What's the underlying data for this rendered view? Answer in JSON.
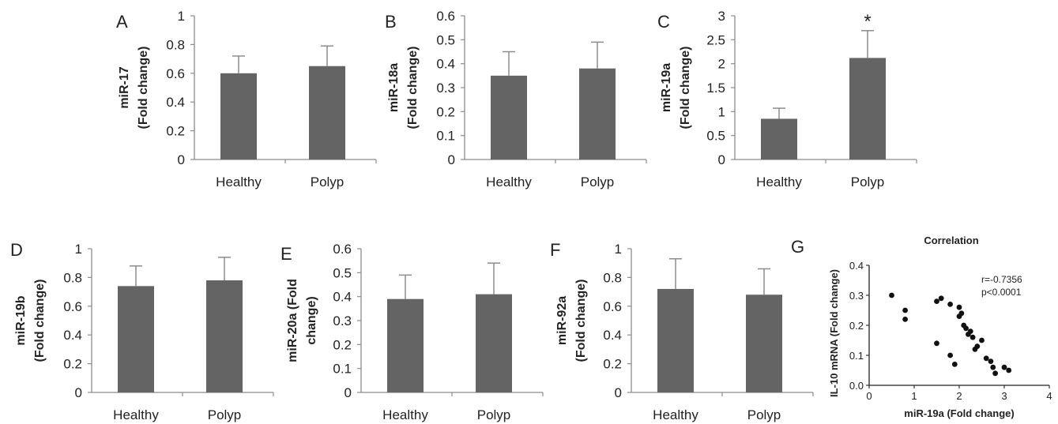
{
  "chart_data": [
    {
      "panel": "A",
      "type": "bar",
      "ylabel": [
        "miR-17",
        "(Fold change)"
      ],
      "categories": [
        "Healthy",
        "Polyp"
      ],
      "values": [
        0.6,
        0.65
      ],
      "errors": [
        0.12,
        0.14
      ],
      "ylim": [
        0,
        1
      ],
      "yticks": [
        "0",
        "0.2",
        "0.4",
        "0.6",
        "0.8",
        "1"
      ],
      "significance": [
        "",
        ""
      ]
    },
    {
      "panel": "B",
      "type": "bar",
      "ylabel": [
        "miR-18a",
        "(Fold change)"
      ],
      "categories": [
        "Healthy",
        "Polyp"
      ],
      "values": [
        0.35,
        0.38
      ],
      "errors": [
        0.1,
        0.11
      ],
      "ylim": [
        0,
        0.6
      ],
      "yticks": [
        "0",
        "0.1",
        "0.2",
        "0.3",
        "0.4",
        "0.5",
        "0.6"
      ],
      "significance": [
        "",
        ""
      ]
    },
    {
      "panel": "C",
      "type": "bar",
      "ylabel": [
        "miR-19a",
        "(Fold change)"
      ],
      "categories": [
        "Healthy",
        "Polyp"
      ],
      "values": [
        0.85,
        2.12
      ],
      "errors": [
        0.22,
        0.57
      ],
      "ylim": [
        0,
        3
      ],
      "yticks": [
        "0",
        "0.5",
        "1",
        "1.5",
        "2",
        "2.5",
        "3"
      ],
      "significance": [
        "",
        "*"
      ]
    },
    {
      "panel": "D",
      "type": "bar",
      "ylabel": [
        "miR-19b",
        "(Fold change)"
      ],
      "categories": [
        "Healthy",
        "Polyp"
      ],
      "values": [
        0.74,
        0.78
      ],
      "errors": [
        0.14,
        0.16
      ],
      "ylim": [
        0,
        1
      ],
      "yticks": [
        "0",
        "0.2",
        "0.4",
        "0.6",
        "0.8",
        "1"
      ],
      "significance": [
        "",
        ""
      ]
    },
    {
      "panel": "E",
      "type": "bar",
      "ylabel": [
        "miR-20a (Fold",
        "change)"
      ],
      "categories": [
        "Healthy",
        "Polyp"
      ],
      "values": [
        0.39,
        0.41
      ],
      "errors": [
        0.1,
        0.13
      ],
      "ylim": [
        0,
        0.6
      ],
      "yticks": [
        "0",
        "0.1",
        "0.2",
        "0.3",
        "0.4",
        "0.5",
        "0.6"
      ],
      "significance": [
        "",
        ""
      ]
    },
    {
      "panel": "F",
      "type": "bar",
      "ylabel": [
        "miR-92a",
        "(Fold change)"
      ],
      "categories": [
        "Healthy",
        "Polyp"
      ],
      "values": [
        0.72,
        0.68
      ],
      "errors": [
        0.21,
        0.18
      ],
      "ylim": [
        0,
        1
      ],
      "yticks": [
        "0",
        "0.2",
        "0.4",
        "0.6",
        "0.8",
        "1"
      ],
      "significance": [
        "",
        ""
      ]
    },
    {
      "panel": "G",
      "type": "scatter",
      "title": "Correlation",
      "xlabel": "miR-19a (Fold change)",
      "ylabel": "IL-10 mRNA (Fold change)",
      "xlim": [
        0,
        4
      ],
      "ylim": [
        0,
        0.4
      ],
      "xticks": [
        "0",
        "1",
        "2",
        "3",
        "4"
      ],
      "yticks": [
        "0.0",
        "0.1",
        "0.2",
        "0.3",
        "0.4"
      ],
      "annotation": [
        "r=-0.7356",
        "p<0.0001"
      ],
      "points": [
        [
          0.5,
          0.3
        ],
        [
          0.8,
          0.25
        ],
        [
          0.8,
          0.22
        ],
        [
          1.5,
          0.28
        ],
        [
          1.6,
          0.29
        ],
        [
          1.8,
          0.27
        ],
        [
          1.5,
          0.14
        ],
        [
          1.8,
          0.1
        ],
        [
          1.9,
          0.07
        ],
        [
          2.0,
          0.26
        ],
        [
          2.0,
          0.23
        ],
        [
          2.05,
          0.24
        ],
        [
          2.1,
          0.2
        ],
        [
          2.15,
          0.19
        ],
        [
          2.2,
          0.17
        ],
        [
          2.25,
          0.18
        ],
        [
          2.3,
          0.16
        ],
        [
          2.4,
          0.13
        ],
        [
          2.35,
          0.12
        ],
        [
          2.5,
          0.15
        ],
        [
          2.6,
          0.09
        ],
        [
          2.7,
          0.08
        ],
        [
          2.75,
          0.06
        ],
        [
          2.8,
          0.04
        ],
        [
          3.0,
          0.06
        ],
        [
          3.1,
          0.05
        ]
      ]
    }
  ],
  "colors": {
    "bar": "#646464",
    "text": "#222222",
    "axis": "#8c8c8c",
    "point": "#111111"
  }
}
